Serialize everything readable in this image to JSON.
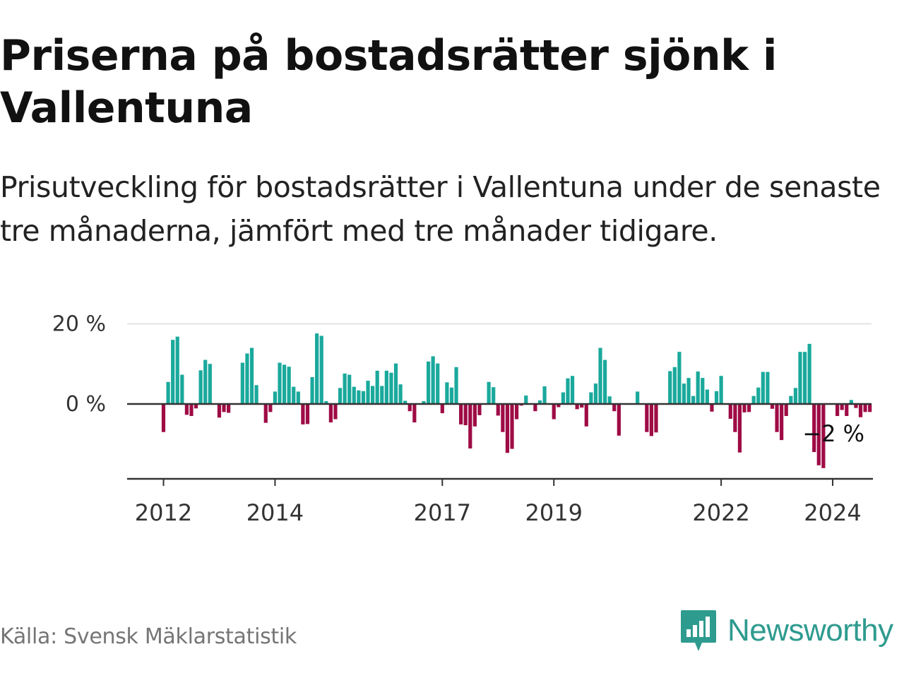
{
  "title": "Priserna på bostadsrätter sjönk i Vallentuna",
  "subtitle": "Prisutveckling för bostadsrätter i Vallentuna under de senaste tre månaderna, jämfört med tre månader tidigare.",
  "source": "Källa: Svensk Mäklarstatistik",
  "brand": {
    "name": "Newsworthy",
    "logo_icon": "bar-chart-speech-bubble-icon"
  },
  "colors": {
    "positive": "#1aa99c",
    "negative": "#9e0b45",
    "axis": "#333333",
    "grid": "#dddddd",
    "brand": "#2e9b8f"
  },
  "chart_data": {
    "type": "bar",
    "title": "",
    "xlabel": "",
    "ylabel": "",
    "ylim": [
      -18,
      20
    ],
    "yticks": [
      0,
      20
    ],
    "ytick_labels": [
      "0 %",
      "20 %"
    ],
    "xticks": [
      2012,
      2014,
      2017,
      2019,
      2022,
      2024
    ],
    "xtick_labels": [
      "2012",
      "2014",
      "2017",
      "2019",
      "2022",
      "2024"
    ],
    "start": {
      "year": 2012,
      "month": 1
    },
    "frequency": "monthly",
    "annotation": "−2 %",
    "values": [
      -7,
      5.5,
      16,
      16.8,
      7.3,
      -2.7,
      -3,
      -1.1,
      8.4,
      11,
      10,
      0,
      -3.4,
      -2,
      -2.2,
      0,
      0,
      10.3,
      12.6,
      14,
      4.7,
      0,
      -4.7,
      -2,
      3.1,
      10.3,
      9.8,
      9.3,
      4.3,
      3.1,
      -5.1,
      -5,
      6.7,
      17.6,
      17,
      0.7,
      -4.6,
      -3.8,
      4,
      7.6,
      7.3,
      4.3,
      3.4,
      3.2,
      5.8,
      4.5,
      8.3,
      4.5,
      8.3,
      7.8,
      10.1,
      4.9,
      0.8,
      -1.8,
      -4.6,
      0,
      0.7,
      10.6,
      11.9,
      10.1,
      -2.3,
      5.4,
      4.1,
      9.2,
      -5.1,
      -5.3,
      -11.1,
      -5.6,
      -2.8,
      0,
      5.5,
      4.2,
      -2.9,
      -7,
      -12.2,
      -11.2,
      -3.8,
      -0.4,
      2.1,
      0,
      -1.8,
      0.9,
      4.4,
      0,
      -3.8,
      -0.8,
      2.9,
      6.4,
      7,
      -1.3,
      -0.9,
      -5.6,
      2.9,
      5.1,
      14,
      11,
      1.9,
      -1.8,
      -7.9,
      0,
      0,
      0,
      3.1,
      0,
      -7,
      -8,
      -7.1,
      0,
      0,
      8.2,
      9.2,
      13,
      5.1,
      6.5,
      2,
      8.1,
      6.5,
      3.6,
      -1.9,
      3.2,
      7,
      0,
      -3.7,
      -7,
      -12.1,
      -2.1,
      -2,
      2,
      4.1,
      8,
      8,
      -1.2,
      -7,
      -9,
      -3,
      2,
      4,
      13,
      13,
      15,
      -12,
      -15.3,
      -16,
      0,
      0,
      -3,
      -1.5,
      -3,
      1,
      -1,
      -3.3,
      -2,
      -2
    ]
  }
}
